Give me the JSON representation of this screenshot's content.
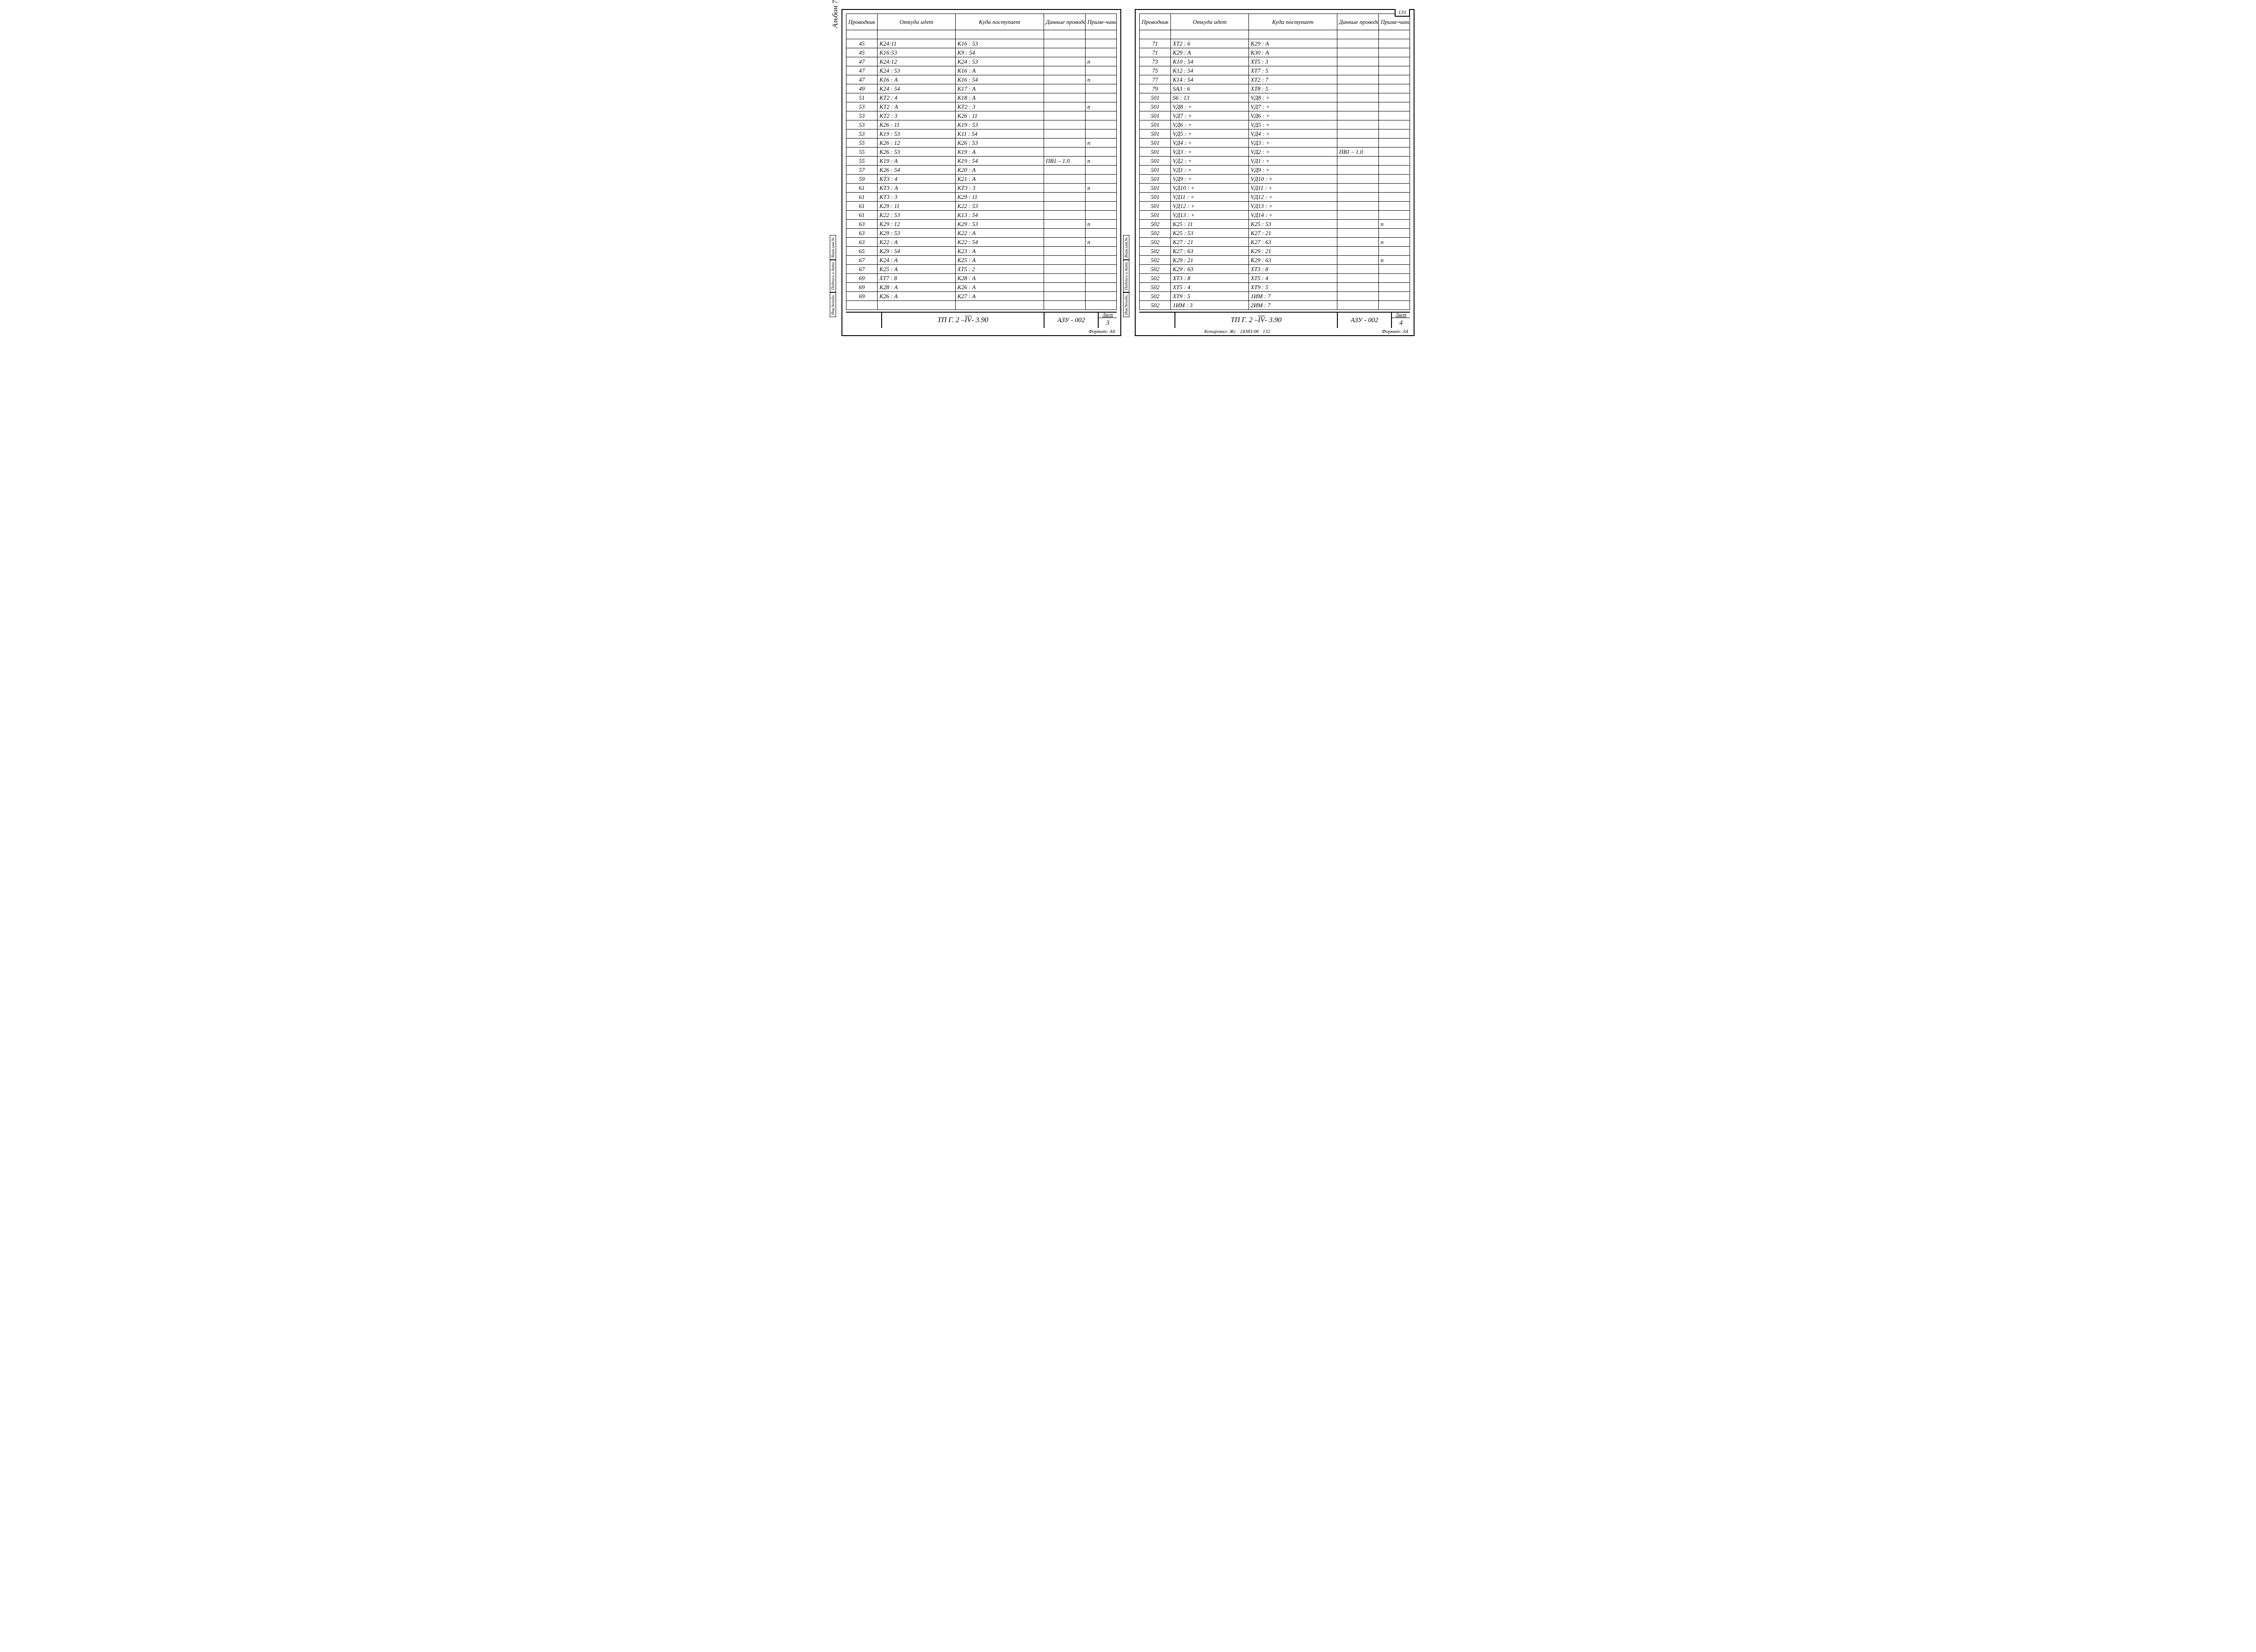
{
  "columns": [
    "Проводник",
    "Откуда идет",
    "Куда поступает",
    "Данные провода",
    "Приме-чание"
  ],
  "album_label": "Альбом 7",
  "side_labels": [
    "Инв.№подл.",
    "Подпись и дата",
    "Взам.инв.№"
  ],
  "title_project_prefix": "ТП Г. 2 – ",
  "title_project_roman": "IV",
  "title_project_suffix": " - 3.90",
  "title_code": "АЗУ - 002",
  "sheet_label": "Лист",
  "format_label": "Формат: А4",
  "copier_label": "Копировал:",
  "copier_sig": "Жс",
  "copier_num": "24383-06",
  "copier_page": "132",
  "left": {
    "sheet_no": "3",
    "rows": [
      [
        "45",
        "К24:11",
        "К16 : 53",
        "",
        ""
      ],
      [
        "45",
        "К16:53",
        "К9 : 54",
        "",
        ""
      ],
      [
        "47",
        "К24:12",
        "К24 : 53",
        "",
        "п"
      ],
      [
        "47",
        "К24 : 53",
        "К16 : А",
        "",
        ""
      ],
      [
        "47",
        "К16 : А",
        "К16 : 54",
        "",
        "п"
      ],
      [
        "49",
        "К24 : 54",
        "К17 : А",
        "",
        ""
      ],
      [
        "51",
        "КТ2 : 4",
        "К18 : А",
        "",
        ""
      ],
      [
        "53",
        "КТ2 : А",
        "КТ2 : 3",
        "",
        "п"
      ],
      [
        "53",
        "КТ2 : 3",
        "К26 : 11",
        "",
        ""
      ],
      [
        "53",
        "К26 : 11",
        "К19 : 53",
        "",
        ""
      ],
      [
        "53",
        "К19 : 53",
        "К11 : 54",
        "",
        ""
      ],
      [
        "55",
        "К26 : 12",
        "К26 : 53",
        "",
        "п"
      ],
      [
        "55",
        "К26 : 53",
        "К19 : А",
        "",
        ""
      ],
      [
        "55",
        "К19 : А",
        "К19 : 54",
        "ПВ1 – 1.0",
        "п"
      ],
      [
        "57",
        "К26 : 54",
        "К20 : А",
        "",
        ""
      ],
      [
        "59",
        "КТ3 : 4",
        "К21 : А",
        "",
        ""
      ],
      [
        "61",
        "КТ3 : А",
        "КТ3 : 3",
        "",
        "п"
      ],
      [
        "61",
        "КТ3 : 3",
        "К29 : 11",
        "",
        ""
      ],
      [
        "61",
        "К29 : 11",
        "К22 : 53",
        "",
        ""
      ],
      [
        "61",
        "К22 : 53",
        "К13 : 54",
        "",
        ""
      ],
      [
        "63",
        "К29 : 12",
        "К29 : 53",
        "",
        "п"
      ],
      [
        "63",
        "К29 : 53",
        "К22 : А",
        "",
        ""
      ],
      [
        "63",
        "К22 : А",
        "К22 : 54",
        "",
        "п"
      ],
      [
        "65",
        "К29 : 54",
        "К23 : А",
        "",
        ""
      ],
      [
        "67",
        "К24 : А",
        "К25 : А",
        "",
        ""
      ],
      [
        "67",
        "К25 : А",
        "ХТ5 : 2",
        "",
        ""
      ],
      [
        "69",
        "ХТ7 : 8",
        "К28 : А",
        "",
        ""
      ],
      [
        "69",
        "К28 : А",
        "К26 : А",
        "",
        ""
      ],
      [
        "69",
        "К26 : А",
        "К27 : А",
        "",
        ""
      ]
    ]
  },
  "right": {
    "page_top": "131",
    "sheet_no": "4",
    "rows": [
      [
        "71",
        "ХТ2 : 6",
        "К29 : А",
        "",
        ""
      ],
      [
        "71",
        "К29 : А",
        "К30 : А",
        "",
        ""
      ],
      [
        "73",
        "К10 : 54",
        "ХТ5 : 3",
        "",
        ""
      ],
      [
        "75",
        "К12 : 54",
        "ХТ7 : 5",
        "",
        ""
      ],
      [
        "77",
        "К14 : 54",
        "ХТ2 : 7",
        "",
        ""
      ],
      [
        "79",
        "SА3 : 6",
        "ХТ8 : 5",
        "",
        ""
      ],
      [
        "501",
        "S6 : 13",
        "VД8 : +",
        "",
        ""
      ],
      [
        "501",
        "VД8 : +",
        "VД7 : +",
        "",
        ""
      ],
      [
        "501",
        "VД7 : +",
        "VД6 : +",
        "",
        ""
      ],
      [
        "501",
        "VД6 : +",
        "VД5 : +",
        "",
        ""
      ],
      [
        "501",
        "VД5 : +",
        "VД4 : +",
        "",
        ""
      ],
      [
        "501",
        "VД4 : +",
        "VД3 : +",
        "",
        ""
      ],
      [
        "501",
        "VД3 : +",
        "VД2 : +",
        "ПВ1 – 1.0",
        ""
      ],
      [
        "501",
        "VД2 : +",
        "VД1 : +",
        "",
        ""
      ],
      [
        "501",
        "VД1 : +",
        "VД9 : +",
        "",
        ""
      ],
      [
        "501",
        "VД9 : +",
        "VД10 : +",
        "",
        ""
      ],
      [
        "501",
        "VД10 : +",
        "VД11 : +",
        "",
        ""
      ],
      [
        "501",
        "VД11 : +",
        "VД12 : +",
        "",
        ""
      ],
      [
        "501",
        "VД12 : +",
        "VД13 : +",
        "",
        ""
      ],
      [
        "501",
        "VД13 : +",
        "VД14 : +",
        "",
        ""
      ],
      [
        "502",
        "К25 : 11",
        "К25 : 53",
        "",
        "п"
      ],
      [
        "502",
        "К25 : 53",
        "К27 : 21",
        "",
        ""
      ],
      [
        "502",
        "К27 : 21",
        "К27 : 63",
        "",
        "п"
      ],
      [
        "502",
        "К27 : 63",
        "К29 : 21",
        "",
        ""
      ],
      [
        "502",
        "К29 : 21",
        "К29 : 63",
        "",
        "п"
      ],
      [
        "502",
        "К29 : 63",
        "ХТ3 : 8",
        "",
        ""
      ],
      [
        "502",
        "ХТ3 : 8",
        "ХТ5 : 4",
        "",
        ""
      ],
      [
        "502",
        "ХТ5 : 4",
        "ХТ9 : 5",
        "",
        ""
      ],
      [
        "502",
        "ХТ9 : 5",
        "1ИМ : 7",
        "",
        ""
      ],
      [
        "502",
        "1ИМ : 3",
        "2ИМ : 7",
        "",
        ""
      ]
    ]
  }
}
